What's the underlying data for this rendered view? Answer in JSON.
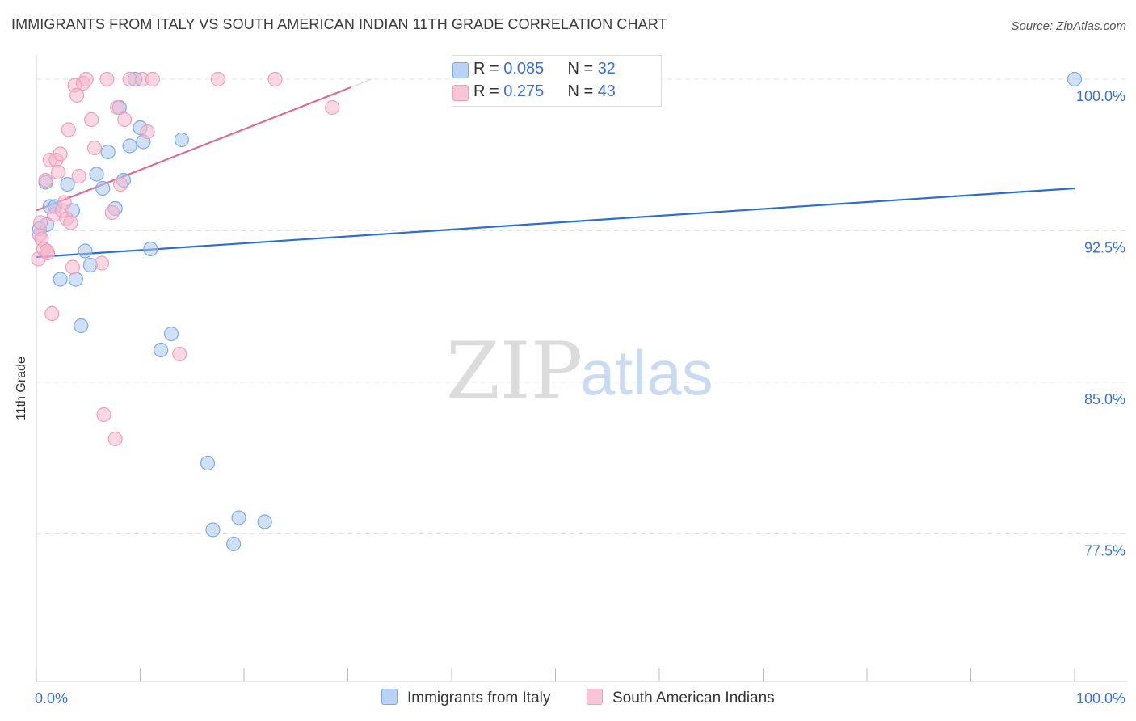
{
  "title": "IMMIGRANTS FROM ITALY VS SOUTH AMERICAN INDIAN 11TH GRADE CORRELATION CHART",
  "source": "Source: ZipAtlas.com",
  "watermark": {
    "zip": "ZIP",
    "atlas": "atlas"
  },
  "legend": {
    "rows": [
      {
        "r_label": "R =",
        "r_value": "0.085",
        "n_label": "N =",
        "n_value": "32"
      },
      {
        "r_label": "R =",
        "r_value": "0.275",
        "n_label": "N =",
        "n_value": "43"
      }
    ]
  },
  "bottom_legend": {
    "series1": "Immigrants from Italy",
    "series2": "South American Indians"
  },
  "colors": {
    "blue_fill": "#a9c8f0",
    "blue_stroke": "#7aaae6",
    "blue_line": "#2a6fcb",
    "pink_fill": "#f4b8cc",
    "pink_stroke": "#ee9fba",
    "pink_line": "#e06a95",
    "axis_text": "#3a6fd0",
    "grid": "#e3e3e3"
  },
  "chart_data": {
    "type": "scatter",
    "title": "IMMIGRANTS FROM ITALY VS SOUTH AMERICAN INDIAN 11TH GRADE CORRELATION CHART",
    "xlabel": "",
    "ylabel": "11th Grade",
    "xlim": [
      0,
      100
    ],
    "ylim": [
      70.2,
      101.2
    ],
    "x_tick_labels": [
      "0.0%",
      "100.0%"
    ],
    "y_ticks": [
      77.5,
      85.0,
      92.5,
      100.0
    ],
    "y_tick_labels": [
      "77.5%",
      "85.0%",
      "92.5%",
      "100.0%"
    ],
    "grid": true,
    "series": [
      {
        "name": "Immigrants from Italy",
        "color": "#7aaae6",
        "points": [
          [
            0.3,
            92.6
          ],
          [
            0.9,
            94.9
          ],
          [
            1.0,
            92.8
          ],
          [
            1.3,
            93.7
          ],
          [
            1.8,
            93.7
          ],
          [
            2.3,
            90.1
          ],
          [
            3.0,
            94.8
          ],
          [
            3.5,
            93.5
          ],
          [
            3.8,
            90.1
          ],
          [
            4.3,
            87.8
          ],
          [
            4.7,
            91.5
          ],
          [
            5.2,
            90.8
          ],
          [
            5.8,
            95.3
          ],
          [
            6.4,
            94.6
          ],
          [
            6.9,
            96.4
          ],
          [
            7.6,
            93.6
          ],
          [
            8.0,
            98.6
          ],
          [
            8.4,
            95.0
          ],
          [
            9.0,
            96.7
          ],
          [
            9.5,
            100.0
          ],
          [
            10.0,
            97.6
          ],
          [
            10.3,
            96.9
          ],
          [
            11.0,
            91.6
          ],
          [
            12.0,
            86.6
          ],
          [
            13.0,
            87.4
          ],
          [
            14.0,
            97.0
          ],
          [
            16.5,
            81.0
          ],
          [
            17.0,
            77.7
          ],
          [
            19.0,
            77.0
          ],
          [
            19.5,
            78.3
          ],
          [
            22.0,
            78.1
          ],
          [
            100.0,
            100.0
          ]
        ],
        "trend": {
          "x": [
            0,
            100
          ],
          "y": [
            91.2,
            94.6
          ]
        }
      },
      {
        "name": "South American Indians",
        "color": "#ee9fba",
        "points": [
          [
            0.2,
            91.1
          ],
          [
            0.3,
            92.3
          ],
          [
            0.5,
            92.1
          ],
          [
            0.7,
            91.6
          ],
          [
            0.9,
            95.0
          ],
          [
            1.1,
            91.4
          ],
          [
            1.3,
            96.0
          ],
          [
            1.5,
            88.4
          ],
          [
            1.7,
            93.3
          ],
          [
            1.9,
            96.0
          ],
          [
            2.1,
            95.4
          ],
          [
            2.3,
            96.3
          ],
          [
            2.5,
            93.5
          ],
          [
            2.7,
            93.9
          ],
          [
            2.9,
            93.1
          ],
          [
            3.1,
            97.5
          ],
          [
            3.3,
            92.9
          ],
          [
            3.5,
            90.7
          ],
          [
            3.7,
            99.7
          ],
          [
            3.9,
            99.2
          ],
          [
            4.1,
            95.2
          ],
          [
            4.5,
            99.8
          ],
          [
            4.8,
            100.0
          ],
          [
            5.3,
            98.0
          ],
          [
            5.6,
            96.6
          ],
          [
            6.3,
            90.9
          ],
          [
            6.5,
            83.4
          ],
          [
            6.8,
            100.0
          ],
          [
            7.3,
            93.4
          ],
          [
            7.6,
            82.2
          ],
          [
            7.8,
            98.6
          ],
          [
            8.1,
            94.8
          ],
          [
            8.5,
            98.0
          ],
          [
            9.0,
            100.0
          ],
          [
            10.2,
            100.0
          ],
          [
            10.7,
            97.4
          ],
          [
            11.2,
            100.0
          ],
          [
            13.8,
            86.4
          ],
          [
            17.5,
            100.0
          ],
          [
            23.0,
            100.0
          ],
          [
            28.5,
            98.6
          ],
          [
            0.4,
            92.9
          ],
          [
            1.0,
            91.5
          ]
        ],
        "trend": {
          "x": [
            0,
            30.3
          ],
          "y": [
            93.5,
            99.6
          ]
        }
      }
    ]
  }
}
